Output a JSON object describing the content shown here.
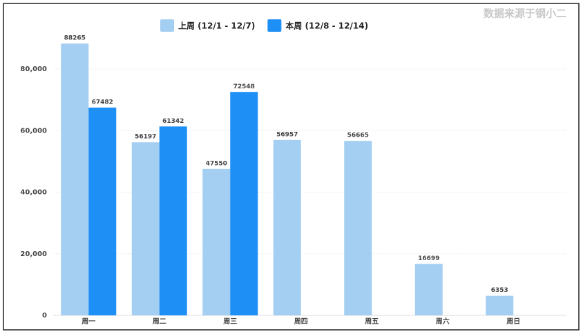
{
  "chart_data": {
    "type": "bar",
    "source": "数据来源于钢小二",
    "categories": [
      "周一",
      "周二",
      "周三",
      "周四",
      "周五",
      "周六",
      "周日"
    ],
    "series": [
      {
        "name": "上周 (12/1 - 12/7)",
        "color": "#a4cff3",
        "values": [
          88265,
          56197,
          47550,
          56957,
          56665,
          16699,
          6353
        ]
      },
      {
        "name": "本周 (12/8 - 12/14)",
        "color": "#1e8ff5",
        "values": [
          67482,
          61342,
          72548,
          null,
          null,
          null,
          null
        ]
      }
    ],
    "ylim": [
      0,
      100000
    ],
    "yticks": [
      {
        "value": 0,
        "label": "0"
      },
      {
        "value": 20000,
        "label": "20,000"
      },
      {
        "value": 40000,
        "label": "40,000"
      },
      {
        "value": 60000,
        "label": "60,000"
      },
      {
        "value": 80000,
        "label": "80,000"
      }
    ],
    "grid": true
  }
}
